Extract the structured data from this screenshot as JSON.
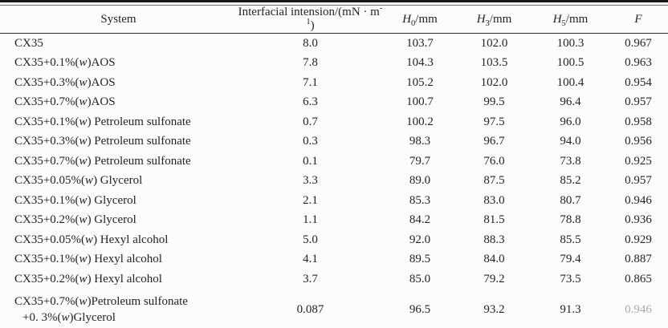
{
  "table": {
    "headers": {
      "system": "System",
      "tension": "Interfacial intension/(mN · m^-1^)",
      "h0": "*H*~0~/mm",
      "h3": "*H*~3~/mm",
      "h5": "*H*~5~/mm",
      "f": "*F*"
    },
    "rows": [
      {
        "system": "CX35",
        "tension": "8.0",
        "h0": "103.7",
        "h3": "102.0",
        "h5": "100.3",
        "f": "0.967"
      },
      {
        "system": "CX35+0.1%(*w*)AOS",
        "tension": "7.8",
        "h0": "104.3",
        "h3": "103.5",
        "h5": "100.5",
        "f": "0.963"
      },
      {
        "system": "CX35+0.3%(*w*)AOS",
        "tension": "7.1",
        "h0": "105.2",
        "h3": "102.0",
        "h5": "100.4",
        "f": "0.954"
      },
      {
        "system": "CX35+0.7%(*w*)AOS",
        "tension": "6.3",
        "h0": "100.7",
        "h3": "99.5",
        "h5": "96.4",
        "f": "0.957"
      },
      {
        "system": "CX35+0.1%(*w*) Petroleum sulfonate",
        "tension": "0.7",
        "h0": "100.2",
        "h3": "97.5",
        "h5": "96.0",
        "f": "0.958"
      },
      {
        "system": "CX35+0.3%(*w*) Petroleum sulfonate",
        "tension": "0.3",
        "h0": "98.3",
        "h3": "96.7",
        "h5": "94.0",
        "f": "0.956"
      },
      {
        "system": "CX35+0.7%(*w*) Petroleum sulfonate",
        "tension": "0.1",
        "h0": "79.7",
        "h3": "76.0",
        "h5": "73.8",
        "f": "0.925"
      },
      {
        "system": "CX35+0.05%(*w*) Glycerol",
        "tension": "3.3",
        "h0": "89.0",
        "h3": "87.5",
        "h5": "85.2",
        "f": "0.957"
      },
      {
        "system": "CX35+0.1%(*w*) Glycerol",
        "tension": "2.1",
        "h0": "85.3",
        "h3": "83.0",
        "h5": "80.7",
        "f": "0.946"
      },
      {
        "system": "CX35+0.2%(*w*) Glycerol",
        "tension": "1.1",
        "h0": "84.2",
        "h3": "81.5",
        "h5": "78.8",
        "f": "0.936"
      },
      {
        "system": "CX35+0.05%(*w*) Hexyl alcohol",
        "tension": "5.0",
        "h0": "92.0",
        "h3": "88.3",
        "h5": "85.5",
        "f": "0.929"
      },
      {
        "system": "CX35+0.1%(*w*) Hexyl alcohol",
        "tension": "4.1",
        "h0": "89.5",
        "h3": "84.0",
        "h5": "79.4",
        "f": "0.887"
      },
      {
        "system": "CX35+0.2%(*w*) Hexyl alcohol",
        "tension": "3.7",
        "h0": "85.0",
        "h3": "79.2",
        "h5": "73.5",
        "f": "0.865"
      },
      {
        "system": "CX35+0.7%(*w*)Petroleum sulfonate\n+0. 3%(*w*)Glycerol",
        "tension": "0.087",
        "h0": "96.5",
        "h3": "93.2",
        "h5": "91.3",
        "f": "0.946"
      }
    ],
    "colors": {
      "rule_dark": "#161616",
      "rule_light": "#6f6f6f",
      "text": "#232323",
      "faded_value": "#aaaaaa"
    }
  }
}
